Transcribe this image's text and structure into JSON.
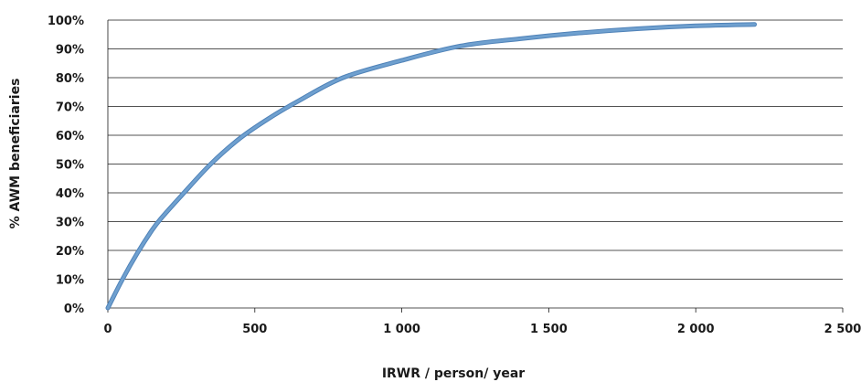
{
  "chart_data": {
    "type": "line",
    "title": "",
    "xlabel": "IRWR / person/ year",
    "ylabel": "% AWM beneficiaries",
    "xlim": [
      0,
      2500
    ],
    "ylim": [
      0,
      100
    ],
    "x_ticks": [
      0,
      500,
      1000,
      1500,
      2000,
      2500
    ],
    "x_tick_labels": [
      "0",
      "500",
      "1 000",
      "1 500",
      "2 000",
      "2 500"
    ],
    "y_ticks": [
      0,
      10,
      20,
      30,
      40,
      50,
      60,
      70,
      80,
      90,
      100
    ],
    "y_tick_labels": [
      "0%",
      "10%",
      "20%",
      "30%",
      "40%",
      "50%",
      "60%",
      "70%",
      "80%",
      "90%",
      "100%"
    ],
    "grid": true,
    "legend": "none",
    "colors": {
      "series": "#6fa0cf",
      "series_edge": "#4f82b8",
      "grid": "#1a1a1a"
    },
    "series": [
      {
        "x": [
          0,
          50,
          100,
          150,
          180,
          250,
          350,
          450,
          550,
          650,
          800,
          1000,
          1200,
          1400,
          1600,
          1800,
          2000,
          2200
        ],
        "y": [
          0,
          10,
          19,
          27,
          31,
          39,
          50,
          59,
          66,
          72,
          80,
          86,
          91,
          93.5,
          95.5,
          97,
          98,
          98.5
        ]
      }
    ]
  }
}
